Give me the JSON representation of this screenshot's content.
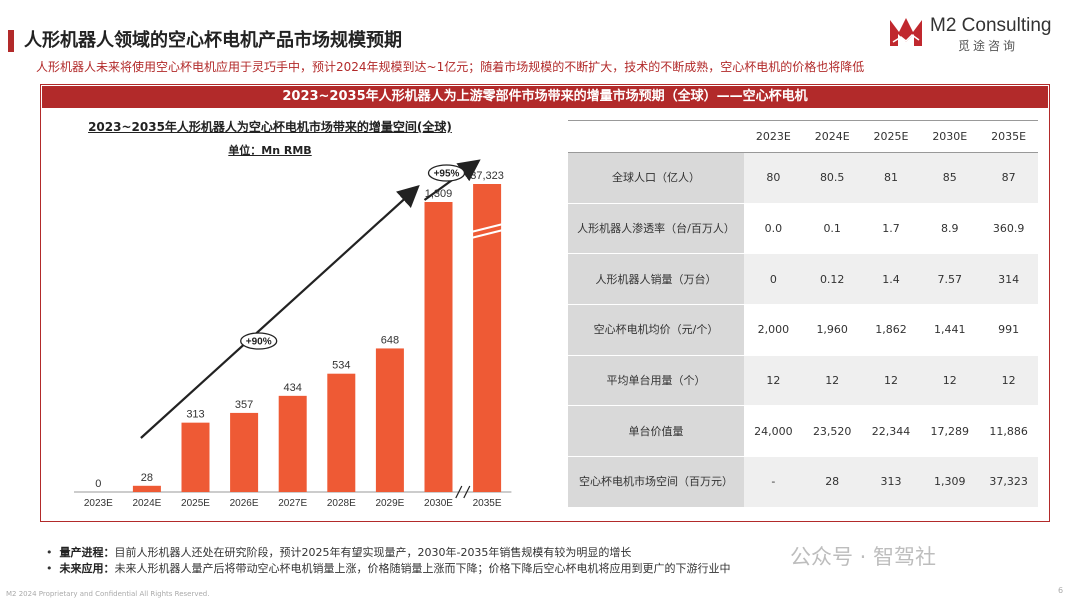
{
  "header": {
    "title": "人形机器人领域的空心杯电机产品市场规模预期",
    "subtitle": "人形机器人未来将使用空心杯电机应用于灵巧手中，预计2024年规模到达~1亿元；随着市场规模的不断扩大，技术的不断成熟，空心杯电机的价格也将降低",
    "logo_name": "M2 Consulting",
    "logo_sub": "觅途咨询"
  },
  "panel": {
    "banner": "2023~2035年人形机器人为上游零部件市场带来的增量市场预期（全球）——空心杯电机"
  },
  "chart_data": {
    "type": "bar",
    "title": "2023~2035年人形机器人为空心杯电机市场带来的增量空间(全球)",
    "unit": "单位：Mn RMB",
    "categories": [
      "2023E",
      "2024E",
      "2025E",
      "2026E",
      "2027E",
      "2028E",
      "2029E",
      "2030E",
      "2035E"
    ],
    "values": [
      0,
      28,
      313,
      357,
      434,
      534,
      648,
      1309,
      37323
    ],
    "value_labels": [
      "0",
      "28",
      "313",
      "357",
      "434",
      "534",
      "648",
      "1,309",
      "37,323"
    ],
    "axis_break": "between 2030E and 2035E",
    "annotations": [
      {
        "label": "+90%",
        "from": "2024E",
        "to": "2030E"
      },
      {
        "label": "+95%",
        "from": "2030E",
        "to": "2035E"
      }
    ],
    "colors": {
      "bar": "#ee5a35",
      "arrow": "#222222"
    }
  },
  "table": {
    "headers": [
      "",
      "2023E",
      "2024E",
      "2025E",
      "2030E",
      "2035E"
    ],
    "rows": [
      {
        "label": "全球人口（亿人）",
        "values": [
          "80",
          "80.5",
          "81",
          "85",
          "87"
        ]
      },
      {
        "label": "人形机器人渗透率（台/百万人）",
        "values": [
          "0.0",
          "0.1",
          "1.7",
          "8.9",
          "360.9"
        ]
      },
      {
        "label": "人形机器人销量（万台）",
        "values": [
          "0",
          "0.12",
          "1.4",
          "7.57",
          "314"
        ]
      },
      {
        "label": "空心杯电机均价（元/个）",
        "values": [
          "2,000",
          "1,960",
          "1,862",
          "1,441",
          "991"
        ]
      },
      {
        "label": "平均单台用量（个）",
        "values": [
          "12",
          "12",
          "12",
          "12",
          "12"
        ]
      },
      {
        "label": "单台价值量",
        "values": [
          "24,000",
          "23,520",
          "22,344",
          "17,289",
          "11,886"
        ]
      },
      {
        "label": "空心杯电机市场空间（百万元）",
        "values": [
          "-",
          "28",
          "313",
          "1,309",
          "37,323"
        ]
      }
    ]
  },
  "bullets": [
    {
      "key": "量产进程：",
      "text": "目前人形机器人还处在研究阶段，预计2025年有望实现量产，2030年-2035年销售规模有较为明显的增长"
    },
    {
      "key": "未来应用：",
      "text": "未来人形机器人量产后将带动空心杯电机销量上涨，价格随销量上涨而下降；价格下降后空心杯电机将应用到更广的下游行业中"
    }
  ],
  "watermark": "公众号 · 智驾社",
  "footer": "M2 2024 Proprietary and Confidential All Rights Reserved.",
  "page_number": "6",
  "colors": {
    "accent": "#b22a2a",
    "bar": "#ee5a35",
    "label_cell": "#d9d9d9",
    "zebra": "#efefef"
  }
}
